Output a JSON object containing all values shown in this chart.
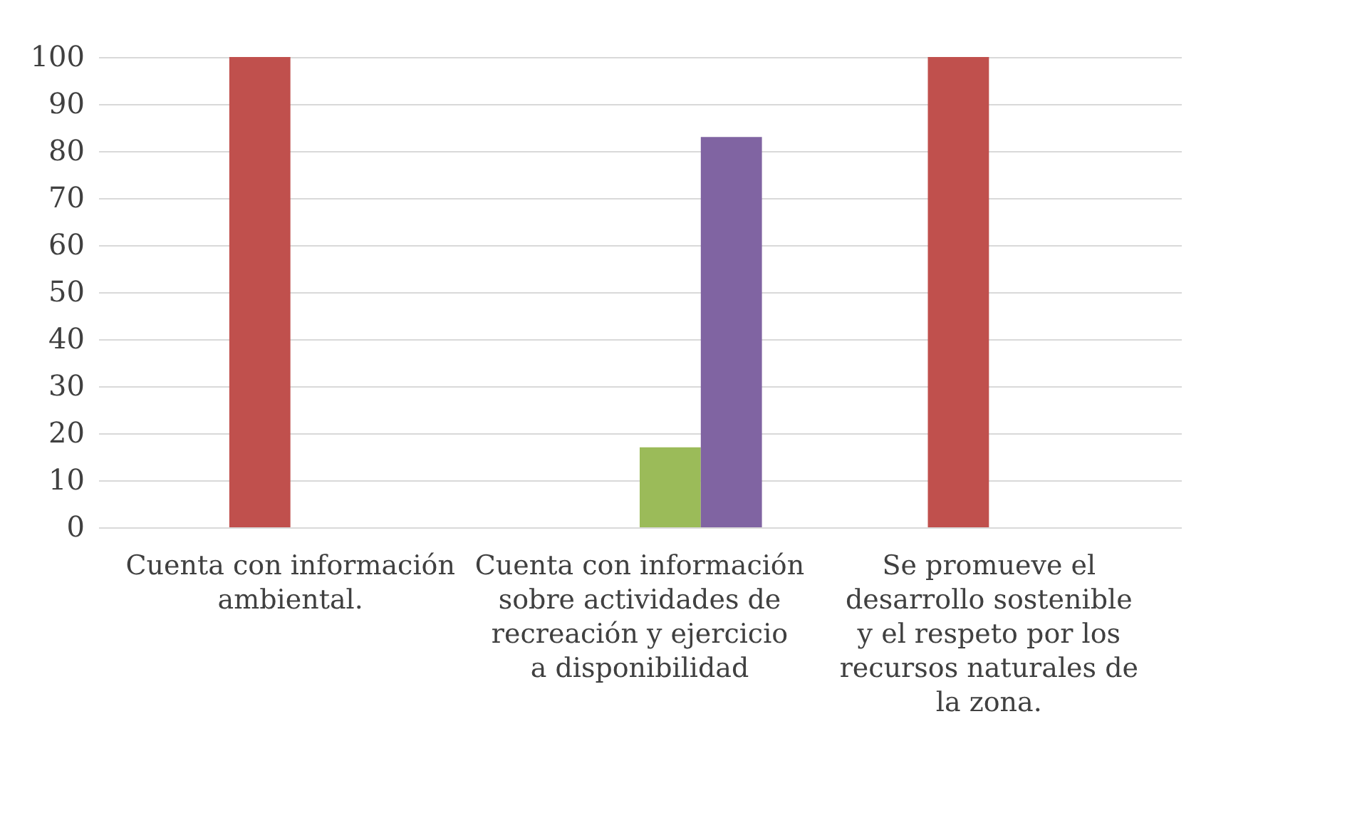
{
  "chart_data": {
    "type": "bar",
    "categories": [
      "Cuenta con información ambiental.",
      "Cuenta con información sobre actividades de recreación y ejercicio a disponibilidad",
      "Se promueve el desarrollo sostenible y el respeto por los recursos naturales de la zona."
    ],
    "series": [
      {
        "color": "#4f81bd",
        "values": [
          0,
          0,
          0
        ]
      },
      {
        "color": "#c0504d",
        "values": [
          100,
          0,
          100
        ]
      },
      {
        "color": "#9bbb59",
        "values": [
          0,
          17,
          0
        ]
      },
      {
        "color": "#8064a2",
        "values": [
          0,
          83,
          0
        ]
      }
    ],
    "ylim": [
      0,
      100
    ],
    "yticks": [
      0,
      10,
      20,
      30,
      40,
      50,
      60,
      70,
      80,
      90,
      100
    ],
    "grid": "y"
  }
}
